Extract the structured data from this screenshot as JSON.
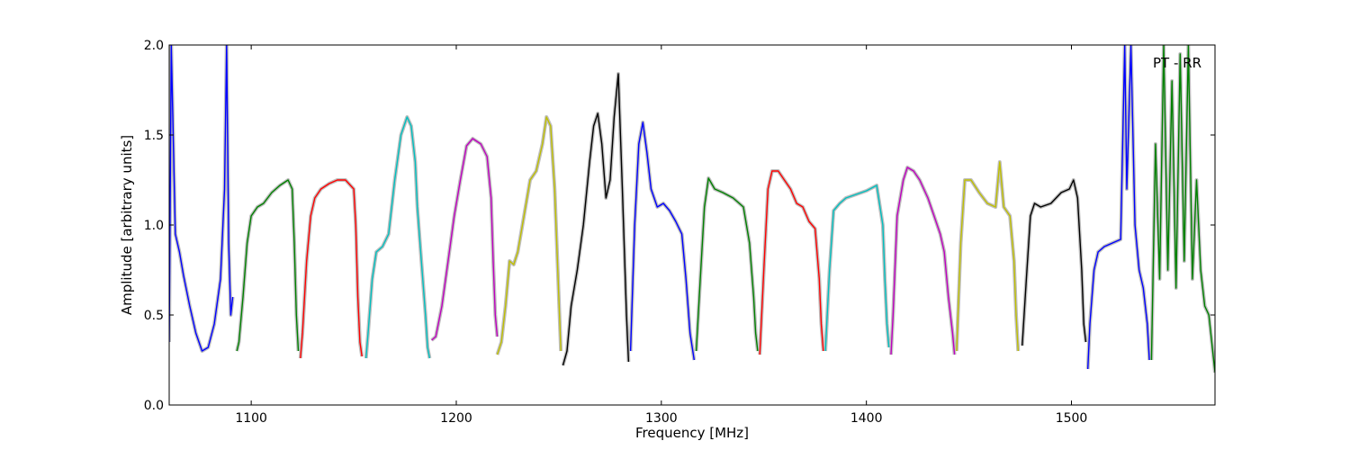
{
  "chart_data": {
    "type": "line",
    "title": "",
    "xlabel": "Frequency [MHz]",
    "ylabel": "Amplitude [arbitrary units]",
    "xlim": [
      1060,
      1570
    ],
    "ylim": [
      0.0,
      2.0
    ],
    "xticks": [
      1100,
      1200,
      1300,
      1400,
      1500
    ],
    "xtick_labels": [
      "1100",
      "1200",
      "1300",
      "1400",
      "1500"
    ],
    "yticks": [
      0.0,
      0.5,
      1.0,
      1.5,
      2.0
    ],
    "ytick_labels": [
      "0.0",
      "0.5",
      "1.0",
      "1.5",
      "2.0"
    ],
    "grid": false,
    "legend": "none",
    "annotation": "PT - RR",
    "background_series_color": "#bfbfbf",
    "series": [
      {
        "color": "#0000ff",
        "x": [
          1060,
          1061,
          1063,
          1065,
          1067,
          1070,
          1073,
          1076,
          1079,
          1082,
          1085,
          1087,
          1088,
          1089,
          1090,
          1091
        ],
        "y": [
          0.35,
          2.0,
          0.95,
          0.85,
          0.72,
          0.55,
          0.4,
          0.3,
          0.32,
          0.45,
          0.7,
          1.2,
          2.0,
          0.9,
          0.5,
          0.6
        ]
      },
      {
        "color": "#008000",
        "x": [
          1093,
          1094,
          1096,
          1098,
          1100,
          1103,
          1106,
          1110,
          1114,
          1118,
          1120,
          1121,
          1122,
          1123
        ],
        "y": [
          0.3,
          0.35,
          0.6,
          0.9,
          1.05,
          1.1,
          1.12,
          1.18,
          1.22,
          1.25,
          1.2,
          0.9,
          0.5,
          0.3
        ]
      },
      {
        "color": "#ff0000",
        "x": [
          1124,
          1125,
          1127,
          1129,
          1131,
          1134,
          1138,
          1142,
          1146,
          1150,
          1151,
          1152,
          1153,
          1154
        ],
        "y": [
          0.26,
          0.4,
          0.8,
          1.05,
          1.15,
          1.2,
          1.23,
          1.25,
          1.25,
          1.2,
          1.0,
          0.6,
          0.35,
          0.27
        ]
      },
      {
        "color": "#00bfbf",
        "x": [
          1156,
          1157,
          1159,
          1161,
          1164,
          1167,
          1170,
          1173,
          1176,
          1178,
          1180,
          1181,
          1183,
          1185,
          1186,
          1187
        ],
        "y": [
          0.26,
          0.4,
          0.7,
          0.85,
          0.88,
          0.95,
          1.25,
          1.5,
          1.6,
          1.55,
          1.35,
          1.1,
          0.8,
          0.5,
          0.32,
          0.26
        ]
      },
      {
        "color": "#bf00bf",
        "x": [
          1188,
          1190,
          1193,
          1196,
          1199,
          1202,
          1205,
          1208,
          1212,
          1215,
          1217,
          1218,
          1219,
          1220
        ],
        "y": [
          0.36,
          0.38,
          0.55,
          0.8,
          1.05,
          1.25,
          1.44,
          1.48,
          1.45,
          1.38,
          1.15,
          0.8,
          0.5,
          0.38
        ]
      },
      {
        "color": "#bfbf00",
        "x": [
          1220,
          1222,
          1224,
          1226,
          1228,
          1230,
          1233,
          1236,
          1239,
          1242,
          1244,
          1246,
          1248,
          1250,
          1251
        ],
        "y": [
          0.28,
          0.35,
          0.55,
          0.8,
          0.78,
          0.85,
          1.05,
          1.25,
          1.3,
          1.45,
          1.6,
          1.55,
          1.2,
          0.6,
          0.3
        ]
      },
      {
        "color": "#000000",
        "x": [
          1252,
          1254,
          1256,
          1259,
          1262,
          1265,
          1267,
          1269,
          1271,
          1273,
          1275,
          1277,
          1279,
          1281,
          1283,
          1284
        ],
        "y": [
          0.22,
          0.3,
          0.55,
          0.75,
          1.0,
          1.35,
          1.55,
          1.62,
          1.45,
          1.15,
          1.25,
          1.6,
          1.84,
          1.2,
          0.5,
          0.24
        ]
      },
      {
        "color": "#0000ff",
        "x": [
          1285,
          1287,
          1289,
          1291,
          1293,
          1295,
          1298,
          1301,
          1304,
          1307,
          1310,
          1312,
          1314,
          1316
        ],
        "y": [
          0.3,
          1.0,
          1.45,
          1.57,
          1.4,
          1.2,
          1.1,
          1.12,
          1.08,
          1.02,
          0.95,
          0.7,
          0.4,
          0.25
        ]
      },
      {
        "color": "#008000",
        "x": [
          1317,
          1319,
          1321,
          1323,
          1326,
          1330,
          1335,
          1340,
          1343,
          1345,
          1346,
          1347
        ],
        "y": [
          0.3,
          0.7,
          1.1,
          1.26,
          1.2,
          1.18,
          1.15,
          1.1,
          0.9,
          0.6,
          0.4,
          0.3
        ]
      },
      {
        "color": "#ff0000",
        "x": [
          1348,
          1350,
          1352,
          1354,
          1357,
          1360,
          1363,
          1366,
          1369,
          1372,
          1375,
          1377,
          1378,
          1379
        ],
        "y": [
          0.28,
          0.75,
          1.2,
          1.3,
          1.3,
          1.25,
          1.2,
          1.12,
          1.1,
          1.02,
          0.98,
          0.7,
          0.45,
          0.3
        ]
      },
      {
        "color": "#00bfbf",
        "x": [
          1380,
          1382,
          1384,
          1387,
          1390,
          1395,
          1400,
          1405,
          1408,
          1409,
          1410,
          1411
        ],
        "y": [
          0.3,
          0.75,
          1.08,
          1.12,
          1.15,
          1.17,
          1.19,
          1.22,
          1.0,
          0.7,
          0.45,
          0.32
        ]
      },
      {
        "color": "#bf00bf",
        "x": [
          1412,
          1413,
          1415,
          1418,
          1420,
          1423,
          1426,
          1430,
          1433,
          1436,
          1438,
          1440,
          1442,
          1443
        ],
        "y": [
          0.28,
          0.5,
          1.05,
          1.25,
          1.32,
          1.3,
          1.25,
          1.15,
          1.05,
          0.95,
          0.85,
          0.6,
          0.4,
          0.28
        ]
      },
      {
        "color": "#bfbf00",
        "x": [
          1444,
          1446,
          1448,
          1451,
          1455,
          1459,
          1463,
          1465,
          1467,
          1470,
          1472,
          1473,
          1474
        ],
        "y": [
          0.3,
          0.9,
          1.25,
          1.25,
          1.18,
          1.12,
          1.1,
          1.35,
          1.1,
          1.05,
          0.8,
          0.5,
          0.3
        ]
      },
      {
        "color": "#000000",
        "x": [
          1476,
          1478,
          1480,
          1482,
          1485,
          1490,
          1495,
          1499,
          1501,
          1503,
          1505,
          1506,
          1507
        ],
        "y": [
          0.33,
          0.7,
          1.05,
          1.12,
          1.1,
          1.12,
          1.18,
          1.2,
          1.25,
          1.15,
          0.75,
          0.45,
          0.35
        ]
      },
      {
        "color": "#0000ff",
        "x": [
          1508,
          1509,
          1511,
          1513,
          1516,
          1520,
          1524,
          1526,
          1527,
          1529,
          1531,
          1533,
          1535,
          1537,
          1538
        ],
        "y": [
          0.2,
          0.45,
          0.75,
          0.85,
          0.88,
          0.9,
          0.92,
          2.0,
          1.2,
          2.0,
          1.0,
          0.75,
          0.65,
          0.45,
          0.25
        ]
      },
      {
        "color": "#008000",
        "x": [
          1539,
          1541,
          1543,
          1545,
          1547,
          1549,
          1551,
          1553,
          1555,
          1557,
          1559,
          1561,
          1563,
          1565,
          1567,
          1570
        ],
        "y": [
          0.25,
          1.45,
          0.7,
          2.0,
          0.75,
          1.8,
          0.65,
          1.95,
          0.8,
          2.0,
          0.7,
          1.25,
          0.75,
          0.55,
          0.5,
          0.18
        ]
      }
    ]
  }
}
